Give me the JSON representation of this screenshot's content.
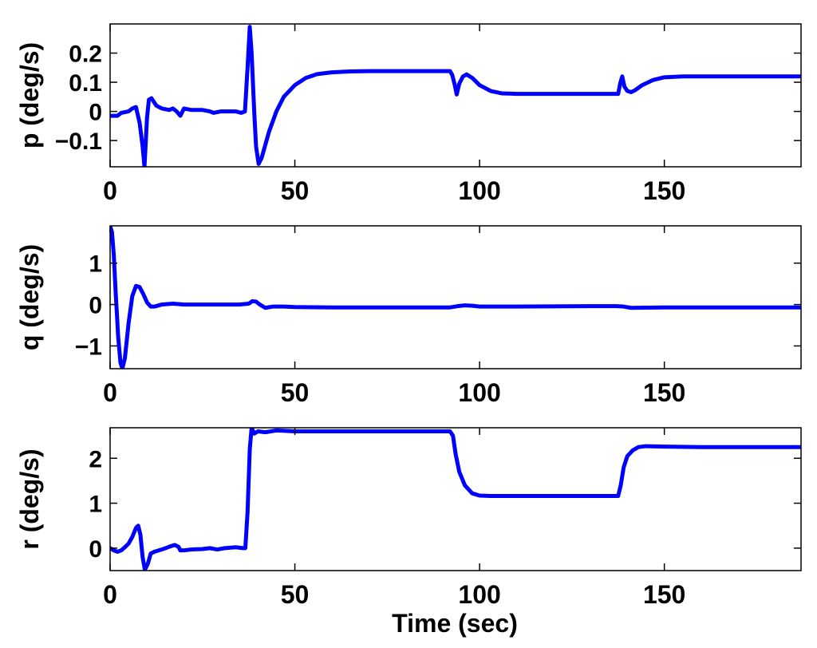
{
  "figure": {
    "xlabel": "Time (sec)"
  },
  "chart_data": [
    {
      "type": "line",
      "ylabel": "p (deg/s)",
      "xlim": [
        0,
        187
      ],
      "ylim": [
        -0.19,
        0.3
      ],
      "xticks": [
        0,
        50,
        100,
        150
      ],
      "yticks": [
        -0.1,
        0,
        0.1,
        0.2
      ],
      "ytick_labels": [
        "−0.1",
        "0",
        "0.1",
        "0.2"
      ],
      "grid": false,
      "series": [
        {
          "color": "#0000ff",
          "points": [
            [
              0,
              -0.015
            ],
            [
              2,
              -0.015
            ],
            [
              3,
              -0.005
            ],
            [
              5,
              0.0
            ],
            [
              6,
              0.01
            ],
            [
              7,
              0.015
            ],
            [
              8,
              -0.04
            ],
            [
              8.8,
              -0.12
            ],
            [
              9.3,
              -0.19
            ],
            [
              10,
              -0.02
            ],
            [
              10.5,
              0.04
            ],
            [
              11.2,
              0.045
            ],
            [
              12.5,
              0.02
            ],
            [
              14,
              0.01
            ],
            [
              16,
              0.005
            ],
            [
              17,
              0.01
            ],
            [
              18,
              0.0
            ],
            [
              19,
              -0.015
            ],
            [
              20,
              0.01
            ],
            [
              22,
              0.005
            ],
            [
              25,
              0.005
            ],
            [
              27,
              0.0
            ],
            [
              28,
              -0.005
            ],
            [
              30,
              0.0
            ],
            [
              34,
              0.0
            ],
            [
              35.5,
              -0.005
            ],
            [
              36.5,
              0.0
            ],
            [
              37.2,
              0.15
            ],
            [
              37.8,
              0.29
            ],
            [
              38.3,
              0.2
            ],
            [
              39,
              0.0
            ],
            [
              39.5,
              -0.12
            ],
            [
              40.2,
              -0.18
            ],
            [
              41,
              -0.16
            ],
            [
              43,
              -0.07
            ],
            [
              45,
              0.0
            ],
            [
              47,
              0.05
            ],
            [
              50,
              0.09
            ],
            [
              53,
              0.115
            ],
            [
              56,
              0.128
            ],
            [
              60,
              0.134
            ],
            [
              65,
              0.137
            ],
            [
              70,
              0.138
            ],
            [
              80,
              0.138
            ],
            [
              92,
              0.138
            ],
            [
              92.6,
              0.125
            ],
            [
              93.3,
              0.09
            ],
            [
              93.8,
              0.058
            ],
            [
              94.5,
              0.095
            ],
            [
              95.5,
              0.12
            ],
            [
              96.5,
              0.127
            ],
            [
              98,
              0.115
            ],
            [
              100,
              0.09
            ],
            [
              103,
              0.07
            ],
            [
              106,
              0.062
            ],
            [
              110,
              0.06
            ],
            [
              120,
              0.06
            ],
            [
              130,
              0.06
            ],
            [
              137.5,
              0.06
            ],
            [
              138.1,
              0.098
            ],
            [
              138.6,
              0.12
            ],
            [
              139.2,
              0.085
            ],
            [
              140,
              0.07
            ],
            [
              141,
              0.066
            ],
            [
              142,
              0.072
            ],
            [
              144,
              0.09
            ],
            [
              147,
              0.108
            ],
            [
              150,
              0.117
            ],
            [
              155,
              0.12
            ],
            [
              165,
              0.12
            ],
            [
              187,
              0.12
            ]
          ]
        }
      ]
    },
    {
      "type": "line",
      "ylabel": "q (deg/s)",
      "xlim": [
        0,
        187
      ],
      "ylim": [
        -1.55,
        1.9
      ],
      "xticks": [
        0,
        50,
        100,
        150
      ],
      "yticks": [
        -1,
        0,
        1
      ],
      "ytick_labels": [
        "−1",
        "0",
        "1"
      ],
      "grid": false,
      "series": [
        {
          "color": "#0000ff",
          "points": [
            [
              0,
              1.9
            ],
            [
              0.5,
              1.75
            ],
            [
              1,
              1.2
            ],
            [
              1.5,
              0.3
            ],
            [
              2.2,
              -0.8
            ],
            [
              2.8,
              -1.4
            ],
            [
              3.3,
              -1.55
            ],
            [
              4,
              -1.3
            ],
            [
              5,
              -0.45
            ],
            [
              6,
              0.2
            ],
            [
              7,
              0.45
            ],
            [
              8,
              0.42
            ],
            [
              9,
              0.25
            ],
            [
              10,
              0.05
            ],
            [
              11,
              -0.05
            ],
            [
              12,
              -0.05
            ],
            [
              14,
              0.0
            ],
            [
              17,
              0.02
            ],
            [
              20,
              0.0
            ],
            [
              25,
              0.0
            ],
            [
              30,
              0.0
            ],
            [
              35,
              0.0
            ],
            [
              37.5,
              0.02
            ],
            [
              38.5,
              0.08
            ],
            [
              39.5,
              0.07
            ],
            [
              40.5,
              0.0
            ],
            [
              42,
              -0.08
            ],
            [
              44,
              -0.05
            ],
            [
              47,
              -0.05
            ],
            [
              50,
              -0.06
            ],
            [
              60,
              -0.07
            ],
            [
              80,
              -0.07
            ],
            [
              92,
              -0.07
            ],
            [
              94,
              -0.04
            ],
            [
              96,
              -0.02
            ],
            [
              98,
              -0.03
            ],
            [
              100,
              -0.05
            ],
            [
              110,
              -0.05
            ],
            [
              130,
              -0.04
            ],
            [
              137,
              -0.04
            ],
            [
              139,
              -0.05
            ],
            [
              141,
              -0.08
            ],
            [
              150,
              -0.07
            ],
            [
              170,
              -0.07
            ],
            [
              187,
              -0.07
            ]
          ]
        }
      ]
    },
    {
      "type": "line",
      "ylabel": "r (deg/s)",
      "xlim": [
        0,
        187
      ],
      "ylim": [
        -0.5,
        2.68
      ],
      "xticks": [
        0,
        50,
        100,
        150
      ],
      "yticks": [
        0,
        1,
        2
      ],
      "ytick_labels": [
        "0",
        "1",
        "2"
      ],
      "grid": false,
      "series": [
        {
          "color": "#0000ff",
          "points": [
            [
              0,
              0.0
            ],
            [
              1,
              -0.05
            ],
            [
              2,
              -0.08
            ],
            [
              3,
              -0.05
            ],
            [
              4,
              0.02
            ],
            [
              5,
              0.1
            ],
            [
              6,
              0.25
            ],
            [
              7,
              0.45
            ],
            [
              7.6,
              0.5
            ],
            [
              8.2,
              0.3
            ],
            [
              8.8,
              -0.2
            ],
            [
              9.4,
              -0.48
            ],
            [
              10.2,
              -0.35
            ],
            [
              11,
              -0.12
            ],
            [
              12,
              -0.08
            ],
            [
              14,
              -0.03
            ],
            [
              16,
              0.03
            ],
            [
              17.5,
              0.07
            ],
            [
              18.5,
              0.03
            ],
            [
              19,
              -0.05
            ],
            [
              20,
              -0.05
            ],
            [
              22,
              -0.03
            ],
            [
              25,
              -0.02
            ],
            [
              27,
              0.0
            ],
            [
              29,
              -0.03
            ],
            [
              31,
              0.0
            ],
            [
              34,
              0.02
            ],
            [
              36,
              0.0
            ],
            [
              36.6,
              0.0
            ],
            [
              37.2,
              0.8
            ],
            [
              37.8,
              2.2
            ],
            [
              38.3,
              2.68
            ],
            [
              39,
              2.55
            ],
            [
              40,
              2.6
            ],
            [
              42,
              2.58
            ],
            [
              45,
              2.62
            ],
            [
              50,
              2.6
            ],
            [
              60,
              2.6
            ],
            [
              80,
              2.6
            ],
            [
              92,
              2.6
            ],
            [
              92.8,
              2.5
            ],
            [
              93.5,
              2.1
            ],
            [
              94.5,
              1.7
            ],
            [
              96,
              1.4
            ],
            [
              98,
              1.22
            ],
            [
              100,
              1.17
            ],
            [
              103,
              1.16
            ],
            [
              110,
              1.16
            ],
            [
              125,
              1.16
            ],
            [
              137.5,
              1.16
            ],
            [
              138.2,
              1.4
            ],
            [
              139,
              1.8
            ],
            [
              140,
              2.05
            ],
            [
              141.5,
              2.18
            ],
            [
              143,
              2.25
            ],
            [
              145,
              2.27
            ],
            [
              150,
              2.26
            ],
            [
              160,
              2.25
            ],
            [
              187,
              2.25
            ]
          ]
        }
      ]
    }
  ]
}
